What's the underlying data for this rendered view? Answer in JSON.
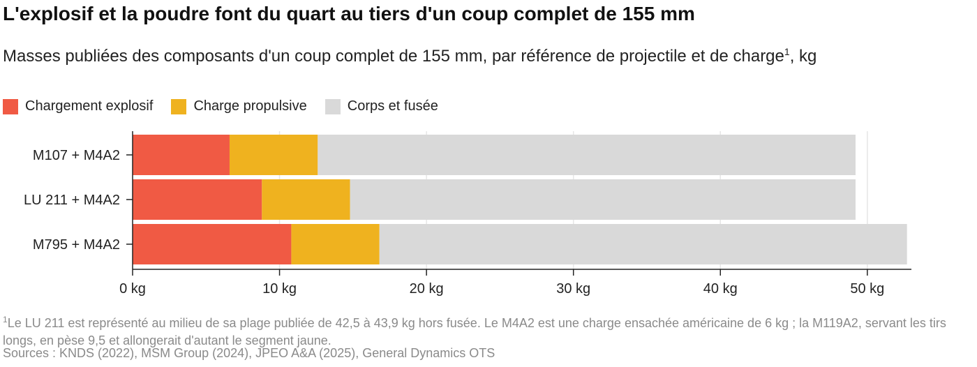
{
  "title": "L'explosif et la poudre font du quart au tiers d'un coup complet de 155 mm",
  "subtitle": "Masses publiées des composants d'un coup complet de 155 mm, par référence de projectile et de charge",
  "subtitle_marker": "1",
  "subtitle_unit": ", kg",
  "footnote_marker": "1",
  "footnote": "Le LU 211 est représenté au milieu de sa plage publiée de 42,5 à 43,9 kg hors fusée. Le M4A2 est une charge ensachée américaine de 6 kg ; la M119A2, servant les tirs longs, en pèse 9,5 et allongerait d'autant le segment jaune.",
  "sources": "Sources : KNDS (2022), MSM Group (2024), JPEO A&A (2025), General Dynamics OTS",
  "chart_data": {
    "type": "bar",
    "orientation": "horizontal",
    "stacked": true,
    "categories": [
      "M107 + M4A2",
      "LU 211 + M4A2",
      "M795 + M4A2"
    ],
    "series": [
      {
        "name": "Chargement explosif",
        "color": "#f05a44",
        "values": [
          6.6,
          8.8,
          10.8
        ]
      },
      {
        "name": "Charge propulsive",
        "color": "#efb21f",
        "values": [
          6.0,
          6.0,
          6.0
        ]
      },
      {
        "name": "Corps et fusée",
        "color": "#d9d9d9",
        "values": [
          36.6,
          34.4,
          35.9
        ]
      }
    ],
    "xlim": [
      0,
      53
    ],
    "xticks": [
      0,
      10,
      20,
      30,
      40,
      50
    ],
    "xtick_labels": [
      "0 kg",
      "10 kg",
      "20 kg",
      "30 kg",
      "40 kg",
      "50 kg"
    ],
    "grid": "vertical",
    "legend_position": "top-left"
  }
}
